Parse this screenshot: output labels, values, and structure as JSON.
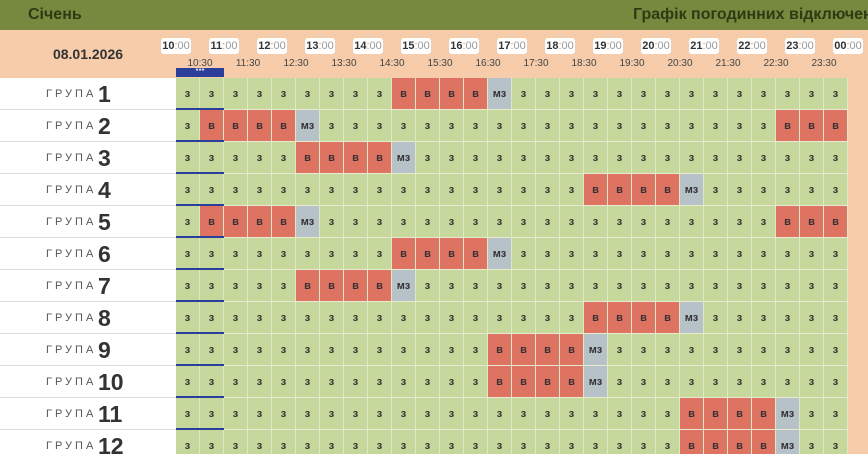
{
  "header": {
    "month": "Січень",
    "title": "Графік погодинних відключень"
  },
  "schedule": {
    "date": "08.01.2026",
    "hour_marks": [
      {
        "h": "10",
        "m": ":00"
      },
      {
        "h": "11",
        "m": ":00"
      },
      {
        "h": "12",
        "m": ":00"
      },
      {
        "h": "13",
        "m": ":00"
      },
      {
        "h": "14",
        "m": ":00"
      },
      {
        "h": "15",
        "m": ":00"
      },
      {
        "h": "16",
        "m": ":00"
      },
      {
        "h": "17",
        "m": ":00"
      },
      {
        "h": "18",
        "m": ":00"
      },
      {
        "h": "19",
        "m": ":00"
      },
      {
        "h": "20",
        "m": ":00"
      },
      {
        "h": "21",
        "m": ":00"
      },
      {
        "h": "22",
        "m": ":00"
      },
      {
        "h": "23",
        "m": ":00"
      },
      {
        "h": "00",
        "m": ":00"
      }
    ],
    "half_marks": [
      "10:30",
      "11:30",
      "12:30",
      "13:30",
      "14:30",
      "15:30",
      "16:30",
      "17:30",
      "18:30",
      "19:30",
      "20:30",
      "21:30",
      "22:30",
      "23:30"
    ],
    "now_marker": "***",
    "rows": [
      {
        "label": "ГРУПА",
        "number": "1",
        "cells": [
          "з",
          "з",
          "з",
          "з",
          "з",
          "з",
          "з",
          "з",
          "з",
          "в",
          "в",
          "в",
          "в",
          "мз",
          "з",
          "з",
          "з",
          "з",
          "з",
          "з",
          "з",
          "з",
          "з",
          "з",
          "з",
          "з",
          "з",
          "з"
        ]
      },
      {
        "label": "ГРУПА",
        "number": "2",
        "cells": [
          "з",
          "в",
          "в",
          "в",
          "в",
          "мз",
          "з",
          "з",
          "з",
          "з",
          "з",
          "з",
          "з",
          "з",
          "з",
          "з",
          "з",
          "з",
          "з",
          "з",
          "з",
          "з",
          "з",
          "з",
          "з",
          "в",
          "в",
          "в"
        ]
      },
      {
        "label": "ГРУПА",
        "number": "3",
        "cells": [
          "з",
          "з",
          "з",
          "з",
          "з",
          "в",
          "в",
          "в",
          "в",
          "мз",
          "з",
          "з",
          "з",
          "з",
          "з",
          "з",
          "з",
          "з",
          "з",
          "з",
          "з",
          "з",
          "з",
          "з",
          "з",
          "з",
          "з",
          "з"
        ]
      },
      {
        "label": "ГРУПА",
        "number": "4",
        "cells": [
          "з",
          "з",
          "з",
          "з",
          "з",
          "з",
          "з",
          "з",
          "з",
          "з",
          "з",
          "з",
          "з",
          "з",
          "з",
          "з",
          "з",
          "в",
          "в",
          "в",
          "в",
          "мз",
          "з",
          "з",
          "з",
          "з",
          "з",
          "з"
        ]
      },
      {
        "label": "ГРУПА",
        "number": "5",
        "cells": [
          "з",
          "в",
          "в",
          "в",
          "в",
          "мз",
          "з",
          "з",
          "з",
          "з",
          "з",
          "з",
          "з",
          "з",
          "з",
          "з",
          "з",
          "з",
          "з",
          "з",
          "з",
          "з",
          "з",
          "з",
          "з",
          "в",
          "в",
          "в"
        ]
      },
      {
        "label": "ГРУПА",
        "number": "6",
        "cells": [
          "з",
          "з",
          "з",
          "з",
          "з",
          "з",
          "з",
          "з",
          "з",
          "в",
          "в",
          "в",
          "в",
          "мз",
          "з",
          "з",
          "з",
          "з",
          "з",
          "з",
          "з",
          "з",
          "з",
          "з",
          "з",
          "з",
          "з",
          "з"
        ]
      },
      {
        "label": "ГРУПА",
        "number": "7",
        "cells": [
          "з",
          "з",
          "з",
          "з",
          "з",
          "в",
          "в",
          "в",
          "в",
          "мз",
          "з",
          "з",
          "з",
          "з",
          "з",
          "з",
          "з",
          "з",
          "з",
          "з",
          "з",
          "з",
          "з",
          "з",
          "з",
          "з",
          "з",
          "з"
        ]
      },
      {
        "label": "ГРУПА",
        "number": "8",
        "cells": [
          "з",
          "з",
          "з",
          "з",
          "з",
          "з",
          "з",
          "з",
          "з",
          "з",
          "з",
          "з",
          "з",
          "з",
          "з",
          "з",
          "з",
          "в",
          "в",
          "в",
          "в",
          "мз",
          "з",
          "з",
          "з",
          "з",
          "з",
          "з"
        ]
      },
      {
        "label": "ГРУПА",
        "number": "9",
        "cells": [
          "з",
          "з",
          "з",
          "з",
          "з",
          "з",
          "з",
          "з",
          "з",
          "з",
          "з",
          "з",
          "з",
          "в",
          "в",
          "в",
          "в",
          "мз",
          "з",
          "з",
          "з",
          "з",
          "з",
          "з",
          "з",
          "з",
          "з",
          "з"
        ]
      },
      {
        "label": "ГРУПА",
        "number": "10",
        "cells": [
          "з",
          "з",
          "з",
          "з",
          "з",
          "з",
          "з",
          "з",
          "з",
          "з",
          "з",
          "з",
          "з",
          "в",
          "в",
          "в",
          "в",
          "мз",
          "з",
          "з",
          "з",
          "з",
          "з",
          "з",
          "з",
          "з",
          "з",
          "з"
        ]
      },
      {
        "label": "ГРУПА",
        "number": "11",
        "cells": [
          "з",
          "з",
          "з",
          "з",
          "з",
          "з",
          "з",
          "з",
          "з",
          "з",
          "з",
          "з",
          "з",
          "з",
          "з",
          "з",
          "з",
          "з",
          "з",
          "з",
          "з",
          "в",
          "в",
          "в",
          "в",
          "мз",
          "з",
          "з"
        ]
      },
      {
        "label": "ГРУПА",
        "number": "12",
        "cells": [
          "з",
          "з",
          "з",
          "з",
          "з",
          "з",
          "з",
          "з",
          "з",
          "з",
          "з",
          "з",
          "з",
          "з",
          "з",
          "з",
          "з",
          "з",
          "з",
          "з",
          "з",
          "в",
          "в",
          "в",
          "в",
          "мз",
          "з",
          "з"
        ]
      }
    ]
  }
}
